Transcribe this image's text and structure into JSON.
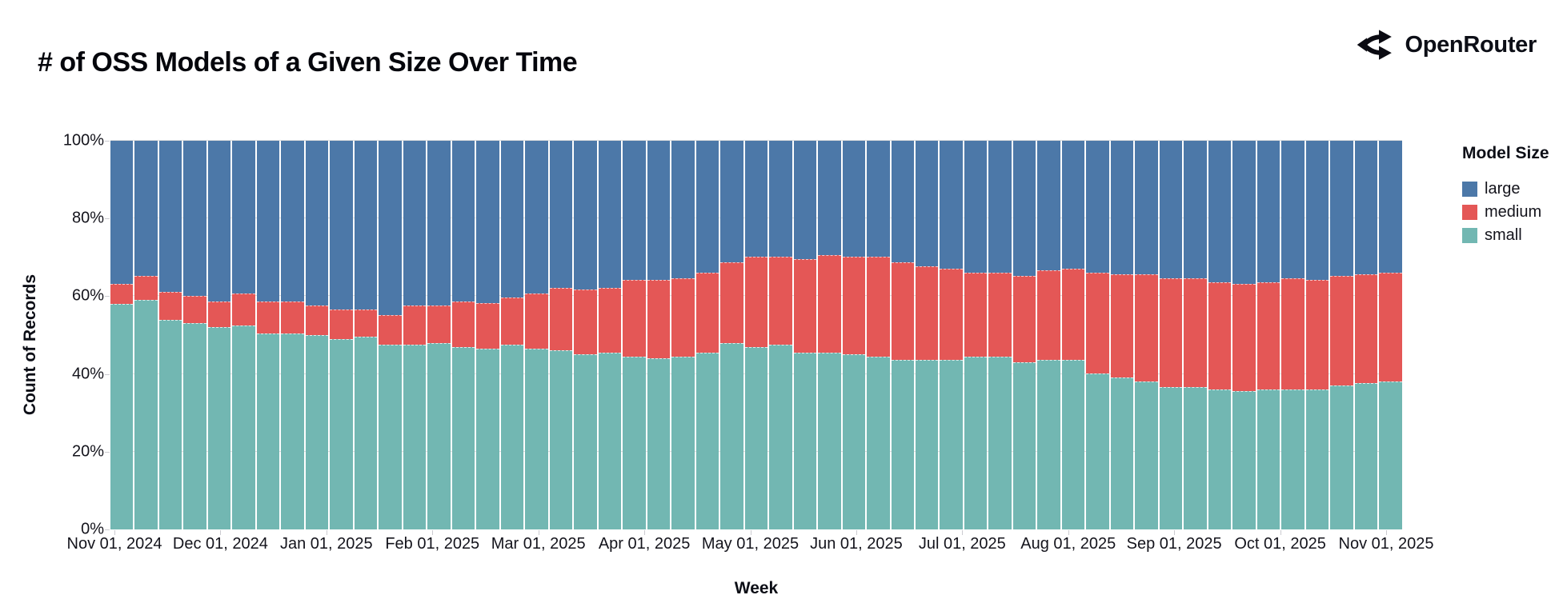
{
  "header": {
    "title": "# of OSS Models of a Given Size Over Time",
    "brand_name": "OpenRouter",
    "brand_icon": "openrouter-fork-icon"
  },
  "chart_data": {
    "type": "bar",
    "stacked": true,
    "normalized_percent": true,
    "title": "# of OSS Models of a Given Size Over Time",
    "xlabel": "Week",
    "ylabel": "Count of Records",
    "ylim": [
      0,
      100
    ],
    "grid": true,
    "y_tick_labels": [
      "0%",
      "20%",
      "40%",
      "60%",
      "80%",
      "100%"
    ],
    "x_tick_labels": [
      "Nov 01, 2024",
      "Dec 01, 2024",
      "Jan 01, 2025",
      "Feb 01, 2025",
      "Mar 01, 2025",
      "Apr 01, 2025",
      "May 01, 2025",
      "Jun 01, 2025",
      "Jul 01, 2025",
      "Aug 01, 2025",
      "Sep 01, 2025",
      "Oct 01, 2025",
      "Nov 01, 2025"
    ],
    "weeks_count": 53,
    "legend": {
      "title": "Model Size",
      "position": "right",
      "entries": [
        {
          "label": "large",
          "color": "#4C78A8"
        },
        {
          "label": "medium",
          "color": "#E45756"
        },
        {
          "label": "small",
          "color": "#72B7B2"
        }
      ]
    },
    "series": [
      {
        "name": "small",
        "color": "#72B7B2",
        "values": [
          58,
          59,
          54,
          53,
          52,
          52.5,
          50.5,
          50.5,
          50,
          49,
          49.5,
          47.5,
          47.5,
          48,
          47,
          46.5,
          47.5,
          46.5,
          46,
          45,
          45.5,
          44.5,
          44,
          44.5,
          45.5,
          48,
          47,
          47.5,
          45.5,
          45.5,
          45,
          44.5,
          43.5,
          43.5,
          43.5,
          44.5,
          44.5,
          43,
          43.5,
          43.5,
          40,
          39,
          38,
          36.5,
          36.5,
          36,
          35.5,
          36,
          36,
          36,
          37,
          37.5,
          38
        ]
      },
      {
        "name": "medium",
        "color": "#E45756",
        "values": [
          5,
          6,
          7,
          7,
          6.5,
          8,
          8,
          8,
          7.5,
          7.5,
          7,
          7.5,
          10,
          9.5,
          11.5,
          11.5,
          12,
          14,
          16,
          16.5,
          16.5,
          19.5,
          20,
          20,
          20.5,
          20.5,
          23,
          22.5,
          24,
          25,
          25,
          25.5,
          25,
          24,
          23.5,
          21.5,
          21.5,
          22,
          23,
          23.5,
          26,
          26.5,
          27.5,
          28,
          28,
          27.5,
          27.5,
          27.5,
          28.5,
          28,
          28,
          28,
          28
        ]
      },
      {
        "name": "large",
        "color": "#4C78A8",
        "values": [
          37,
          35,
          39,
          40,
          41.5,
          39.5,
          41.5,
          41.5,
          42.5,
          43.5,
          43.5,
          45,
          42.5,
          42.5,
          41.5,
          42,
          40.5,
          39.5,
          38,
          38.5,
          38,
          36,
          36,
          35.5,
          34,
          31.5,
          30,
          30,
          30.5,
          29.5,
          30,
          30,
          31.5,
          32.5,
          33,
          34,
          34,
          35,
          33.5,
          33,
          34,
          34.5,
          34.5,
          35.5,
          35.5,
          36.5,
          37,
          36.5,
          35.5,
          36,
          35,
          34.5,
          34
        ]
      }
    ]
  }
}
